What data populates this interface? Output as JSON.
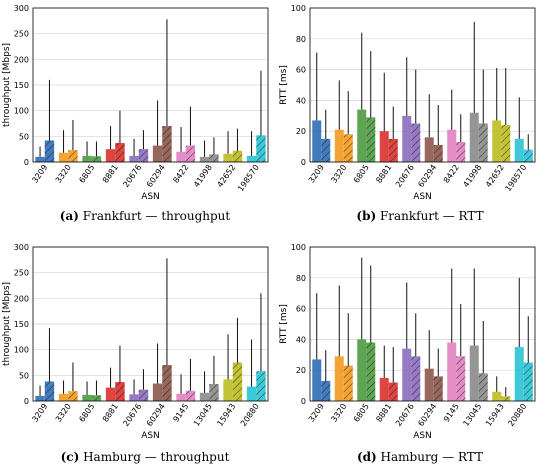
{
  "captions": [
    {
      "letter": "(a)",
      "text": "Frankfurt — throughput"
    },
    {
      "letter": "(b)",
      "text": "Frankfurt — RTT"
    },
    {
      "letter": "(c)",
      "text": "Hamburg — throughput"
    },
    {
      "letter": "(d)",
      "text": "Hamburg — RTT"
    }
  ],
  "chart_data": [
    {
      "type": "bar",
      "title": "(a) Frankfurt — throughput",
      "xlabel": "ASN",
      "ylabel": "throughput [Mbps]",
      "ylim": [
        0,
        300
      ],
      "yticks": [
        0,
        50,
        100,
        150,
        200,
        250,
        300
      ],
      "grid": "horizontal",
      "categories": [
        "3209",
        "3320",
        "6805",
        "8881",
        "20676",
        "60294",
        "8422",
        "41998",
        "42652",
        "198570"
      ],
      "colors": [
        "#2f6db5",
        "#f39a1e",
        "#4c9a3f",
        "#d9312e",
        "#8b6bbd",
        "#8c564b",
        "#e07fc0",
        "#8a8a8a",
        "#bcbd22",
        "#28c3d4"
      ],
      "series": [
        {
          "name": "",
          "values": [
            10,
            18,
            12,
            25,
            12,
            32,
            20,
            10,
            16,
            12
          ],
          "whisker_high": [
            30,
            62,
            40,
            70,
            45,
            120,
            68,
            42,
            60,
            60
          ]
        },
        {
          "name": "",
          "values": [
            42,
            23,
            11,
            37,
            25,
            70,
            32,
            15,
            22,
            52
          ],
          "whisker_high": [
            160,
            82,
            40,
            100,
            62,
            278,
            108,
            48,
            65,
            178
          ]
        }
      ]
    },
    {
      "type": "bar",
      "title": "(b) Frankfurt — RTT",
      "xlabel": "ASN",
      "ylabel": "RTT [ms]",
      "ylim": [
        0,
        100
      ],
      "yticks": [
        0,
        20,
        40,
        60,
        80,
        100
      ],
      "grid": "horizontal",
      "categories": [
        "3209",
        "3320",
        "6805",
        "8881",
        "20676",
        "60294",
        "8422",
        "41998",
        "42652",
        "198570"
      ],
      "colors": [
        "#2f6db5",
        "#f39a1e",
        "#4c9a3f",
        "#d9312e",
        "#8b6bbd",
        "#8c564b",
        "#e07fc0",
        "#8a8a8a",
        "#bcbd22",
        "#28c3d4"
      ],
      "series": [
        {
          "name": "",
          "values": [
            27,
            21,
            34,
            20,
            30,
            16,
            21,
            32,
            27,
            15
          ],
          "whisker_high": [
            71,
            53,
            84,
            58,
            68,
            44,
            47,
            91,
            61,
            42
          ]
        },
        {
          "name": "",
          "values": [
            15,
            18,
            29,
            15,
            25,
            11,
            13,
            25,
            24,
            8
          ],
          "whisker_high": [
            34,
            46,
            72,
            36,
            60,
            37,
            31,
            60,
            61,
            18
          ]
        }
      ]
    },
    {
      "type": "bar",
      "title": "(c) Hamburg — throughput",
      "xlabel": "ASN",
      "ylabel": "throughput [Mbps]",
      "ylim": [
        0,
        300
      ],
      "yticks": [
        0,
        50,
        100,
        150,
        200,
        250,
        300
      ],
      "grid": "horizontal",
      "categories": [
        "3209",
        "3320",
        "6805",
        "8881",
        "20676",
        "60294",
        "9145",
        "13045",
        "15943",
        "20880"
      ],
      "colors": [
        "#2f6db5",
        "#f39a1e",
        "#4c9a3f",
        "#d9312e",
        "#8b6bbd",
        "#8c564b",
        "#e07fc0",
        "#8a8a8a",
        "#bcbd22",
        "#28c3d4"
      ],
      "series": [
        {
          "name": "",
          "values": [
            10,
            14,
            12,
            26,
            13,
            34,
            14,
            16,
            42,
            28
          ],
          "whisker_high": [
            30,
            40,
            38,
            65,
            42,
            112,
            52,
            58,
            130,
            120
          ]
        },
        {
          "name": "",
          "values": [
            38,
            19,
            11,
            37,
            22,
            70,
            20,
            33,
            75,
            58
          ],
          "whisker_high": [
            142,
            75,
            40,
            108,
            62,
            278,
            82,
            88,
            162,
            210
          ]
        }
      ]
    },
    {
      "type": "bar",
      "title": "(d) Hamburg — RTT",
      "xlabel": "ASN",
      "ylabel": "RTT [ms]",
      "ylim": [
        0,
        100
      ],
      "yticks": [
        0,
        20,
        40,
        60,
        80,
        100
      ],
      "grid": "horizontal",
      "categories": [
        "3209",
        "3320",
        "6805",
        "8881",
        "20676",
        "60294",
        "9145",
        "13045",
        "15943",
        "20880"
      ],
      "colors": [
        "#2f6db5",
        "#f39a1e",
        "#4c9a3f",
        "#d9312e",
        "#8b6bbd",
        "#8c564b",
        "#e07fc0",
        "#8a8a8a",
        "#bcbd22",
        "#28c3d4"
      ],
      "series": [
        {
          "name": "",
          "values": [
            27,
            29,
            40,
            15,
            34,
            21,
            38,
            36,
            6,
            35
          ],
          "whisker_high": [
            70,
            75,
            93,
            36,
            77,
            46,
            86,
            86,
            16,
            80
          ]
        },
        {
          "name": "",
          "values": [
            13,
            23,
            38,
            12,
            29,
            16,
            29,
            18,
            3,
            25
          ],
          "whisker_high": [
            33,
            57,
            88,
            35,
            57,
            34,
            63,
            52,
            9,
            55
          ]
        }
      ]
    }
  ]
}
